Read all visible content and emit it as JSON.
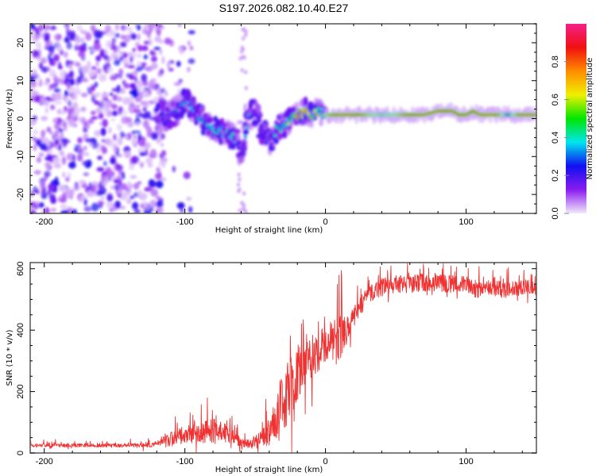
{
  "figure": {
    "title": "S197.2026.082.10.40.E27"
  },
  "chart_data": [
    {
      "type": "heatmap",
      "title": "S197.2026.082.10.40.E27",
      "xlabel": "Height of straight line (km)",
      "ylabel": "Frequency (Hz)",
      "xlim": [
        -210,
        150
      ],
      "ylim": [
        -25,
        25
      ],
      "xticks": [
        -200,
        -100,
        0,
        100
      ],
      "yticks": [
        -20,
        -10,
        0,
        10,
        20
      ],
      "grid": false,
      "colorbar": {
        "label": "Normalized spectral amplitude",
        "range": [
          0.0,
          1.0
        ],
        "ticks": [
          0.0,
          0.2,
          0.4,
          0.6,
          0.8
        ],
        "colormap": [
          "#f2eafc",
          "#8a1cf0",
          "#1010f0",
          "#00e6f0",
          "#00e600",
          "#f0f000",
          "#ff8c00",
          "#f01010",
          "#f5208a"
        ]
      },
      "ridge": {
        "description": "Dominant-frequency ridge vs height (approx.)",
        "x": [
          -120,
          -110,
          -100,
          -95,
          -90,
          -85,
          -80,
          -75,
          -70,
          -65,
          -60,
          -55,
          -50,
          -45,
          -40,
          -35,
          -30,
          -25,
          -20,
          -15,
          -10,
          -5,
          0,
          10,
          20,
          30,
          40,
          50,
          60,
          70,
          80,
          90,
          95,
          100,
          105,
          110,
          120,
          130,
          140,
          150
        ],
        "freq_hz": [
          0,
          1,
          5,
          3,
          0,
          -1,
          -3,
          -3,
          -4,
          -5,
          -10,
          0,
          2,
          -3,
          -6,
          -3,
          -2,
          0,
          1,
          2,
          1,
          2,
          1,
          1,
          1,
          1,
          1,
          1,
          1,
          1,
          2,
          2,
          1,
          1,
          2,
          1,
          1,
          1,
          1,
          1
        ],
        "amplitude": [
          0.25,
          0.3,
          0.35,
          0.35,
          0.4,
          0.35,
          0.45,
          0.4,
          0.4,
          0.45,
          0.35,
          0.4,
          0.35,
          0.3,
          0.3,
          0.4,
          0.55,
          0.7,
          0.85,
          0.9,
          0.85,
          0.75,
          0.7,
          0.95,
          0.95,
          0.75,
          0.6,
          0.7,
          0.9,
          0.95,
          0.95,
          0.85,
          0.9,
          0.85,
          0.9,
          0.95,
          0.95,
          0.5,
          0.95,
          0.95
        ]
      },
      "noise_region": {
        "description": "Low-amplitude scattered noise across all frequencies",
        "x_range": [
          -210,
          -115
        ],
        "amplitude_range": [
          0.02,
          0.25
        ]
      }
    },
    {
      "type": "line",
      "xlabel": "Height of straight line (km)",
      "ylabel": "SNR (10 * v/v)",
      "xlim": [
        -210,
        150
      ],
      "ylim": [
        0,
        620
      ],
      "xticks": [
        -200,
        -100,
        0,
        100
      ],
      "yticks": [
        0,
        200,
        400,
        600
      ],
      "grid": false,
      "series": [
        {
          "name": "SNR",
          "color": "#f03232",
          "x": [
            -210,
            -190,
            -170,
            -150,
            -130,
            -120,
            -110,
            -100,
            -95,
            -90,
            -85,
            -80,
            -75,
            -70,
            -65,
            -60,
            -55,
            -50,
            -45,
            -40,
            -35,
            -30,
            -25,
            -20,
            -15,
            -10,
            -5,
            0,
            5,
            10,
            15,
            20,
            25,
            30,
            40,
            50,
            60,
            70,
            80,
            90,
            100,
            110,
            120,
            130,
            140,
            150
          ],
          "y": [
            25,
            25,
            25,
            25,
            25,
            30,
            45,
            60,
            60,
            65,
            70,
            75,
            70,
            70,
            50,
            35,
            30,
            35,
            50,
            70,
            120,
            180,
            220,
            260,
            290,
            310,
            330,
            350,
            370,
            380,
            400,
            440,
            480,
            510,
            540,
            550,
            550,
            555,
            555,
            550,
            545,
            530,
            535,
            530,
            540,
            535
          ],
          "noise_amplitude": [
            10,
            10,
            10,
            10,
            12,
            15,
            40,
            50,
            60,
            60,
            70,
            70,
            60,
            60,
            40,
            25,
            25,
            30,
            50,
            80,
            130,
            180,
            200,
            150,
            130,
            120,
            110,
            110,
            110,
            130,
            90,
            60,
            50,
            50,
            50,
            50,
            50,
            50,
            50,
            50,
            50,
            45,
            45,
            45,
            45,
            45
          ]
        }
      ]
    }
  ]
}
